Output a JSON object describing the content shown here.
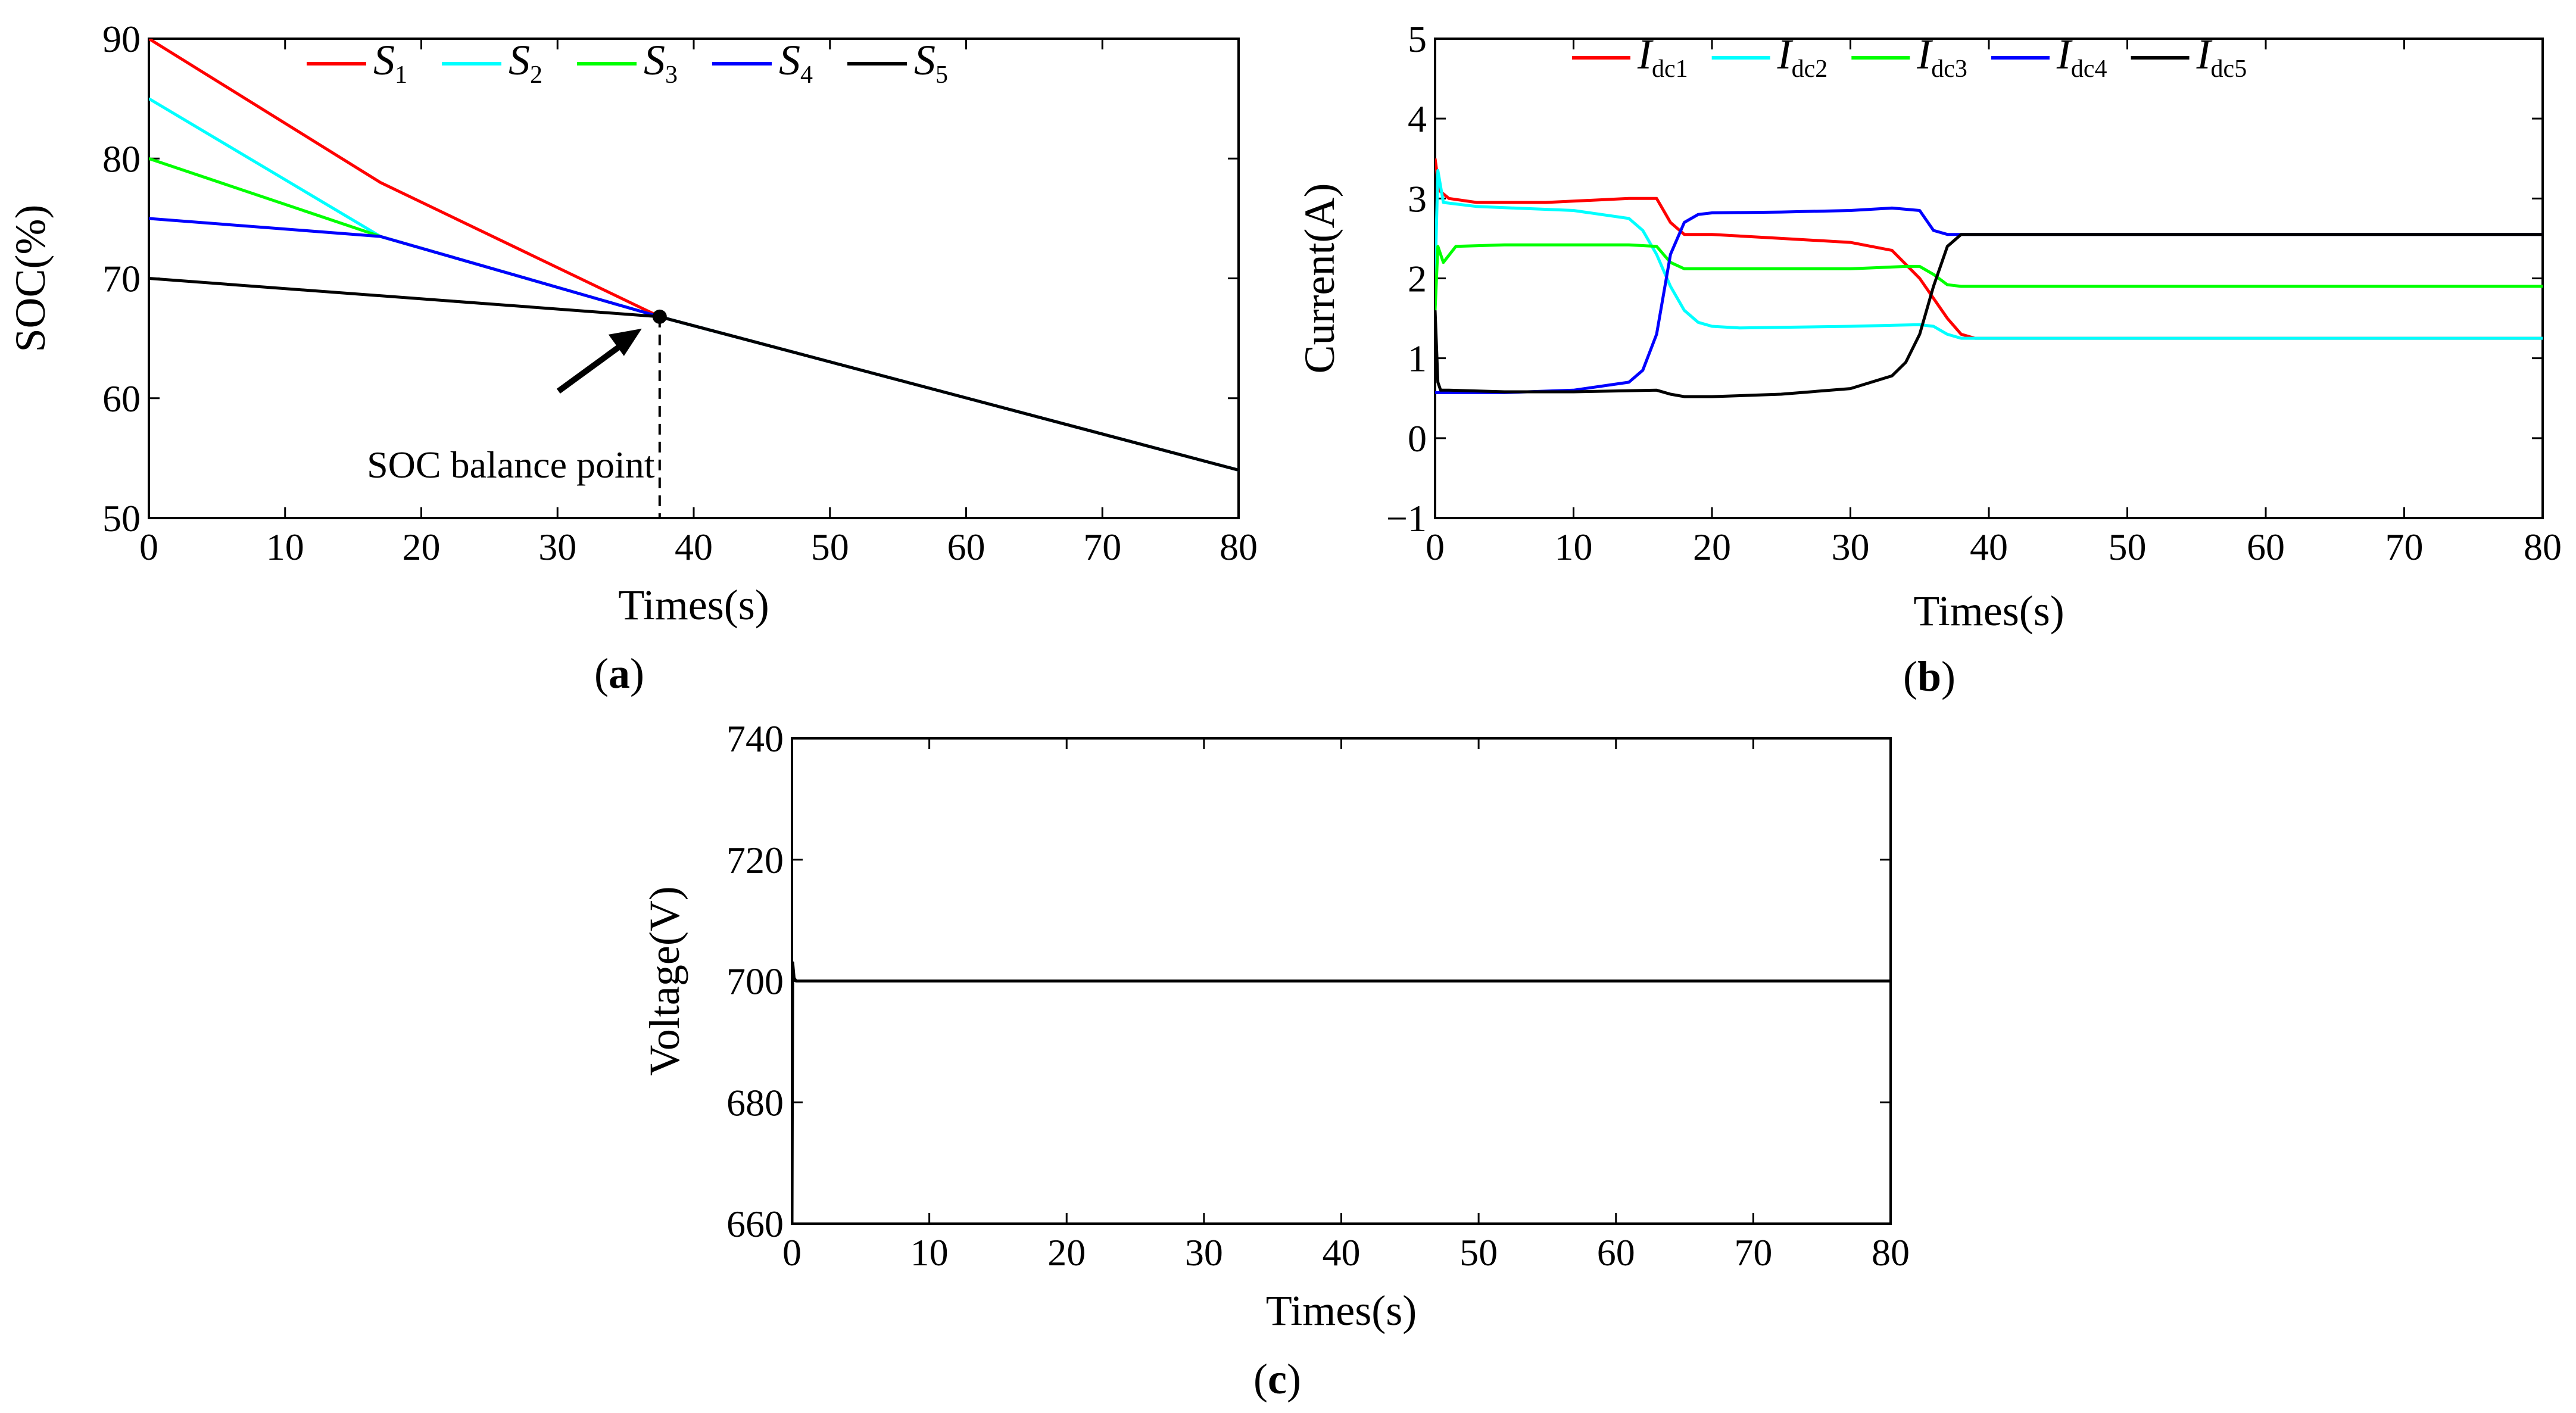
{
  "chart_data": [
    {
      "type": "line",
      "panel": "a",
      "caption": "(a)",
      "xlabel": "Times(s)",
      "ylabel": "SOC(%)",
      "xlim": [
        0,
        80
      ],
      "ylim": [
        50,
        90
      ],
      "xticks": [
        0,
        10,
        20,
        30,
        40,
        50,
        60,
        70,
        80
      ],
      "yticks": [
        50,
        60,
        70,
        80,
        90
      ],
      "legend_position": "top",
      "series": [
        {
          "name": "S1",
          "label_main": "S",
          "label_sub": "1",
          "color": "#ff0000",
          "x": [
            0,
            17,
            37.5,
            80
          ],
          "y": [
            90,
            78,
            66.8,
            54
          ]
        },
        {
          "name": "S2",
          "label_main": "S",
          "label_sub": "2",
          "color": "#00ffff",
          "x": [
            0,
            17,
            37.5,
            80
          ],
          "y": [
            85,
            73.5,
            66.8,
            54
          ]
        },
        {
          "name": "S3",
          "label_main": "S",
          "label_sub": "3",
          "color": "#00ff00",
          "x": [
            0,
            17,
            37.5,
            80
          ],
          "y": [
            80,
            73.5,
            66.8,
            54
          ]
        },
        {
          "name": "S4",
          "label_main": "S",
          "label_sub": "4",
          "color": "#0000ff",
          "x": [
            0,
            17,
            37.5,
            80
          ],
          "y": [
            75,
            73.5,
            66.8,
            54
          ]
        },
        {
          "name": "S5",
          "label_main": "S",
          "label_sub": "5",
          "color": "#000000",
          "x": [
            0,
            37.5,
            80
          ],
          "y": [
            70,
            66.8,
            54
          ]
        }
      ],
      "annotations": [
        {
          "text": "SOC balance point",
          "x": 37.5,
          "y": 66.8
        }
      ]
    },
    {
      "type": "line",
      "panel": "b",
      "caption": "(b)",
      "xlabel": "Times(s)",
      "ylabel": "Current(A)",
      "xlim": [
        0,
        80
      ],
      "ylim": [
        -1,
        5
      ],
      "xticks": [
        0,
        10,
        20,
        30,
        40,
        50,
        60,
        70,
        80
      ],
      "yticks": [
        -1,
        0,
        1,
        2,
        3,
        4,
        5
      ],
      "legend_position": "top",
      "series": [
        {
          "name": "Idc1",
          "label_main": "I",
          "label_sub": "dc1",
          "color": "#ff0000",
          "x": [
            0,
            0.3,
            1,
            3,
            8,
            14,
            16,
            17,
            18,
            20,
            25,
            30,
            33,
            35,
            37,
            38,
            39,
            40,
            50,
            60,
            70,
            80
          ],
          "y": [
            3.5,
            3.1,
            3.0,
            2.95,
            2.95,
            3.0,
            3.0,
            2.7,
            2.55,
            2.55,
            2.5,
            2.45,
            2.35,
            2.0,
            1.5,
            1.3,
            1.25,
            1.25,
            1.25,
            1.25,
            1.25,
            1.25
          ]
        },
        {
          "name": "Idc2",
          "label_main": "I",
          "label_sub": "dc2",
          "color": "#00ffff",
          "x": [
            0,
            0.2,
            0.6,
            3,
            10,
            14,
            15,
            16,
            17,
            18,
            19,
            20,
            22,
            30,
            35,
            36,
            37,
            38,
            40,
            50,
            60,
            70,
            80
          ],
          "y": [
            2.0,
            3.35,
            2.95,
            2.9,
            2.85,
            2.75,
            2.6,
            2.3,
            1.9,
            1.6,
            1.45,
            1.4,
            1.38,
            1.4,
            1.42,
            1.4,
            1.3,
            1.25,
            1.25,
            1.25,
            1.25,
            1.25,
            1.25
          ]
        },
        {
          "name": "Idc3",
          "label_main": "I",
          "label_sub": "dc3",
          "color": "#00ff00",
          "x": [
            0,
            0.2,
            0.6,
            1.5,
            5,
            14,
            16,
            17,
            18,
            20,
            30,
            34,
            35,
            36,
            37,
            38,
            40,
            50,
            60,
            70,
            80
          ],
          "y": [
            1.6,
            2.4,
            2.2,
            2.4,
            2.42,
            2.42,
            2.4,
            2.2,
            2.12,
            2.12,
            2.12,
            2.15,
            2.15,
            2.05,
            1.92,
            1.9,
            1.9,
            1.9,
            1.9,
            1.9,
            1.9
          ]
        },
        {
          "name": "Idc4",
          "label_main": "I",
          "label_sub": "dc4",
          "color": "#0000ff",
          "x": [
            0,
            5,
            10,
            14,
            15,
            16,
            17,
            18,
            19,
            20,
            25,
            30,
            33,
            35,
            36,
            37,
            38,
            40,
            50,
            60,
            70,
            80
          ],
          "y": [
            0.57,
            0.57,
            0.6,
            0.7,
            0.85,
            1.3,
            2.3,
            2.7,
            2.8,
            2.82,
            2.83,
            2.85,
            2.88,
            2.85,
            2.6,
            2.55,
            2.55,
            2.55,
            2.55,
            2.55,
            2.55,
            2.55
          ]
        },
        {
          "name": "Idc5",
          "label_main": "I",
          "label_sub": "dc5",
          "color": "#000000",
          "x": [
            0,
            0.2,
            0.4,
            1,
            5,
            10,
            16,
            17,
            18,
            20,
            25,
            30,
            33,
            34,
            35,
            36,
            37,
            38,
            40,
            50,
            60,
            70,
            80
          ],
          "y": [
            1.6,
            0.7,
            0.6,
            0.6,
            0.58,
            0.58,
            0.6,
            0.55,
            0.52,
            0.52,
            0.55,
            0.62,
            0.78,
            0.95,
            1.3,
            1.9,
            2.4,
            2.55,
            2.55,
            2.55,
            2.55,
            2.55,
            2.55
          ]
        }
      ]
    },
    {
      "type": "line",
      "panel": "c",
      "caption": "(c)",
      "xlabel": "Times(s)",
      "ylabel": "Voltage(V)",
      "xlim": [
        0,
        80
      ],
      "ylim": [
        660,
        740
      ],
      "xticks": [
        0,
        10,
        20,
        30,
        40,
        50,
        60,
        70,
        80
      ],
      "yticks": [
        660,
        680,
        700,
        720,
        740
      ],
      "series": [
        {
          "name": "Voltage",
          "color": "#000000",
          "x": [
            0,
            0.05,
            0.15,
            0.3,
            17,
            35,
            80
          ],
          "y": [
            660,
            703,
            700.5,
            700,
            700,
            700,
            700
          ]
        }
      ]
    }
  ]
}
